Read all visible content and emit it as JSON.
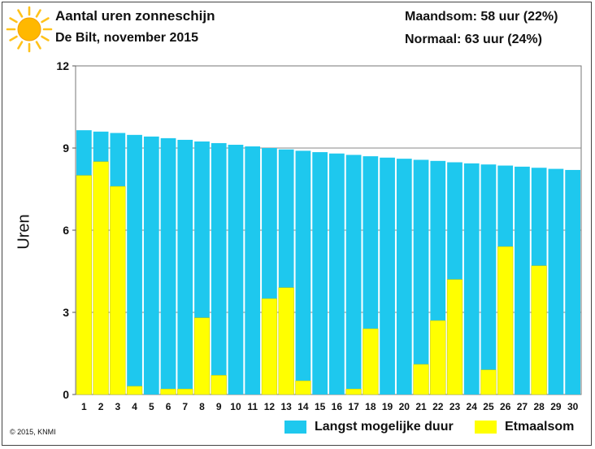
{
  "header": {
    "title": "Aantal uren zonneschijn",
    "subtitle": "De Bilt, november 2015",
    "stat_month": "Maandsom: 58 uur (22%)",
    "stat_normal": "Normaal: 63 uur (24%)",
    "icon": "sun-icon"
  },
  "footer": {
    "copyright": "© 2015, KNMI"
  },
  "colors": {
    "max_duration": "#1EC8EE",
    "daily_sum": "#FFFF00",
    "sun": "#FFB800",
    "grid": "#888888",
    "bar_edge": "#0a6a8c"
  },
  "chart_data": {
    "type": "bar",
    "title": "Aantal uren zonneschijn",
    "subtitle": "De Bilt, november 2015",
    "ylabel": "Uren",
    "xlabel": "",
    "ylim": [
      0,
      12
    ],
    "yticks": [
      0,
      3,
      6,
      9,
      12
    ],
    "grid": true,
    "legend_position": "bottom-right",
    "categories": [
      "1",
      "2",
      "3",
      "4",
      "5",
      "6",
      "7",
      "8",
      "9",
      "10",
      "11",
      "12",
      "13",
      "14",
      "15",
      "16",
      "17",
      "18",
      "19",
      "20",
      "21",
      "22",
      "23",
      "24",
      "25",
      "26",
      "27",
      "28",
      "29",
      "30"
    ],
    "series": [
      {
        "name": "Langst mogelijke duur",
        "color": "#1EC8EE",
        "values": [
          9.65,
          9.6,
          9.55,
          9.48,
          9.42,
          9.36,
          9.3,
          9.24,
          9.18,
          9.12,
          9.06,
          9.0,
          8.95,
          8.9,
          8.85,
          8.8,
          8.75,
          8.7,
          8.65,
          8.61,
          8.57,
          8.53,
          8.48,
          8.44,
          8.4,
          8.36,
          8.32,
          8.28,
          8.24,
          8.2
        ]
      },
      {
        "name": "Etmaalsom",
        "color": "#FFFF00",
        "values": [
          8.0,
          8.5,
          7.6,
          0.3,
          0,
          0.2,
          0.2,
          2.8,
          0.7,
          0,
          0,
          3.5,
          3.9,
          0.5,
          0,
          0,
          0.2,
          2.4,
          0,
          0,
          1.1,
          2.7,
          4.2,
          0,
          0.9,
          5.4,
          0,
          4.7,
          0,
          0
        ]
      }
    ]
  }
}
